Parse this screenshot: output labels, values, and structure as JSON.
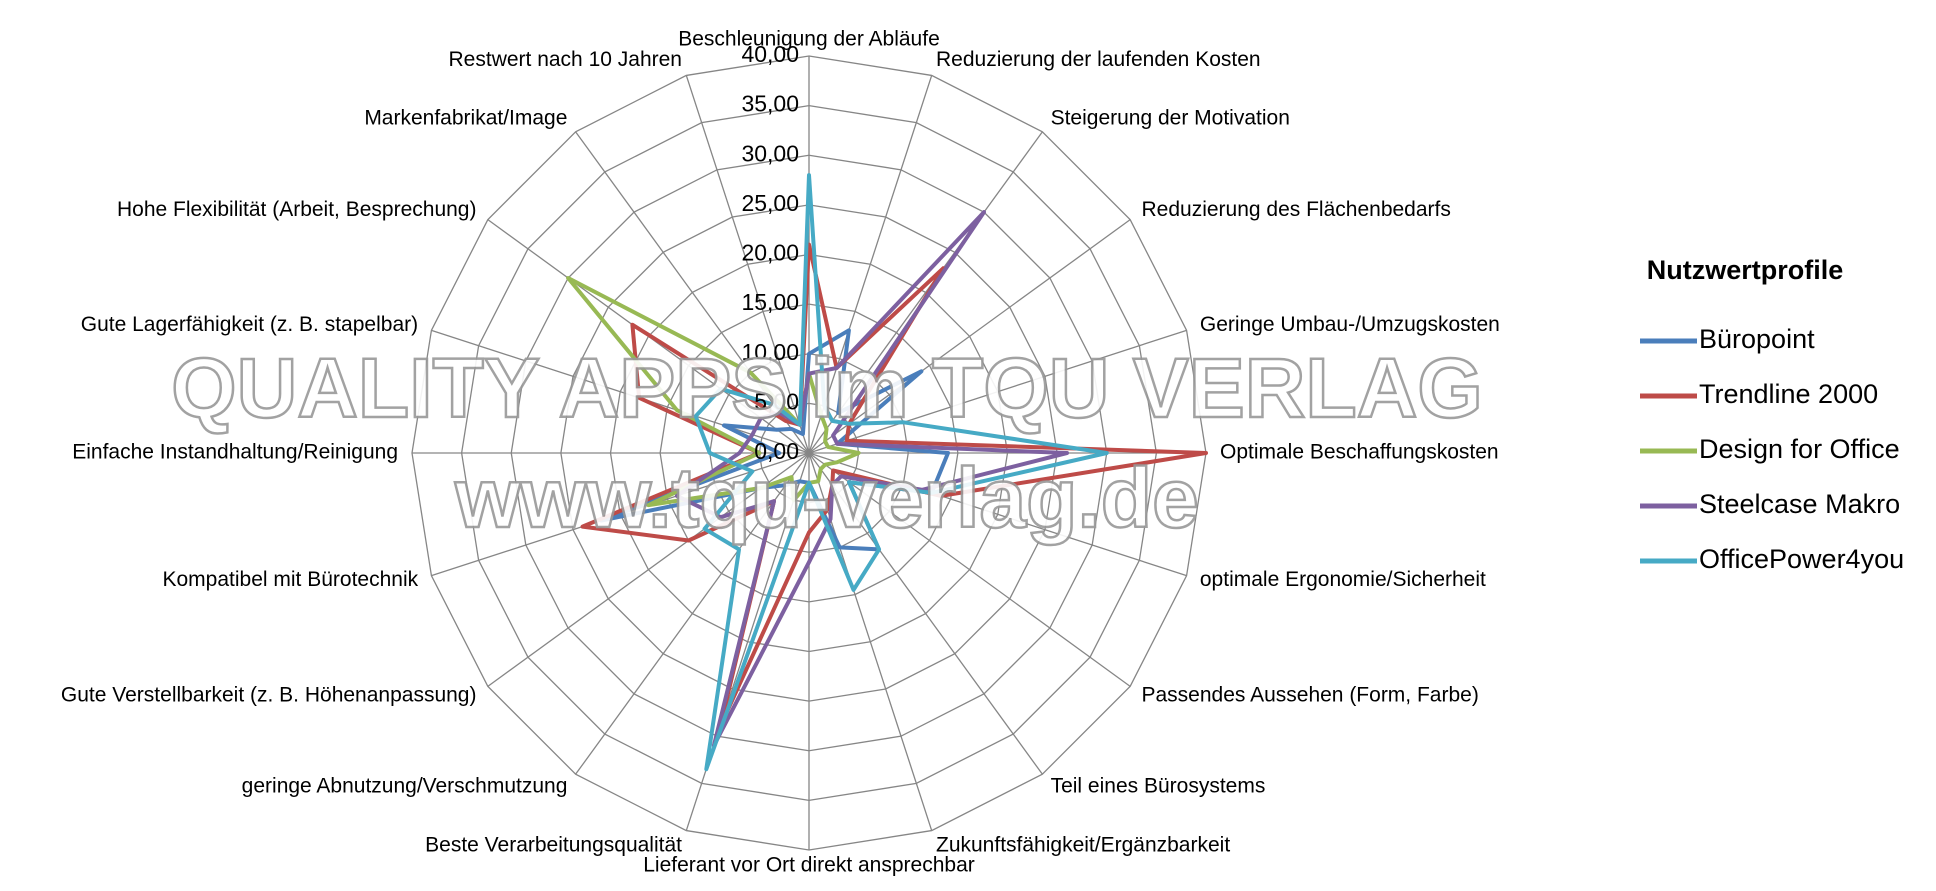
{
  "chart_data": {
    "type": "radar",
    "categories": [
      "Beschleunigung der Abläufe",
      "Reduzierung der laufenden Kosten",
      "Steigerung der Motivation",
      "Reduzierung des Flächenbedarfs",
      "Geringe Umbau-/Umzugskosten",
      "Optimale Beschaffungskosten",
      "optimale Ergonomie/Sicherheit",
      "Passendes Aussehen (Form, Farbe)",
      "Teil eines Bürosystems",
      "Zukunftsfähigkeit/Ergänzbarkeit",
      "Lieferant vor Ort direkt ansprechbar",
      "Beste Verarbeitungsqualität",
      "geringe Abnutzung/Verschmutzung",
      "Gute Verstellbarkeit (z. B. Höhenanpassung)",
      "Kompatibel mit Bürotechnik",
      "Einfache Instandhaltung/Reinigung",
      "Gute Lagerfähigkeit (z. B. stapelbar)",
      "Hohe Flexibilität (Arbeit, Besprechung)",
      "Markenfabrikat/Image",
      "Restwert nach 10 Jahren"
    ],
    "series": [
      {
        "name": "Büropoint",
        "color": "#4a7ebb",
        "values": [
          10,
          13,
          5,
          14,
          3,
          14,
          13,
          5,
          12,
          10,
          3,
          3,
          4,
          6,
          22,
          3,
          9,
          4,
          3,
          2
        ]
      },
      {
        "name": "Trendline 2000",
        "color": "#be4b48",
        "values": [
          21,
          9,
          23,
          5,
          4,
          40,
          14,
          3,
          4,
          6,
          8,
          29,
          6,
          15,
          24,
          5,
          18,
          22,
          4,
          3
        ]
      },
      {
        "name": "Design for Office",
        "color": "#98b954",
        "values": [
          8,
          4,
          3,
          2,
          2,
          5,
          3,
          2,
          2,
          3,
          3,
          5,
          3,
          6,
          17,
          5,
          14,
          30,
          10,
          3
        ]
      },
      {
        "name": "Steelcase Makro",
        "color": "#7d60a0",
        "values": [
          8,
          9,
          30,
          3,
          3,
          26,
          12,
          4,
          4,
          7,
          11,
          31,
          6,
          11,
          14,
          7,
          6,
          6,
          5,
          3
        ]
      },
      {
        "name": "OfficePower4you",
        "color": "#46aac5",
        "values": [
          28,
          5,
          4,
          5,
          10,
          30,
          13,
          5,
          12,
          14.5,
          3,
          33.5,
          12,
          13,
          6,
          10,
          12,
          11,
          6,
          3
        ]
      }
    ],
    "ylim": [
      0,
      40
    ],
    "yticks": [
      {
        "value": 0,
        "label": "0,00"
      },
      {
        "value": 5,
        "label": "5,00"
      },
      {
        "value": 10,
        "label": "10,00"
      },
      {
        "value": 15,
        "label": "15,00"
      },
      {
        "value": 20,
        "label": "20,00"
      },
      {
        "value": 25,
        "label": "25,00"
      },
      {
        "value": 30,
        "label": "30,00"
      },
      {
        "value": 35,
        "label": "35,00"
      },
      {
        "value": 40,
        "label": "40,00"
      }
    ],
    "legend_title": "Nutzwertprofile",
    "legend": "right",
    "grid": true,
    "annotations": [
      "QUALITY APPS im TQU VERLAG",
      "www.tqu-verlag.de"
    ]
  }
}
